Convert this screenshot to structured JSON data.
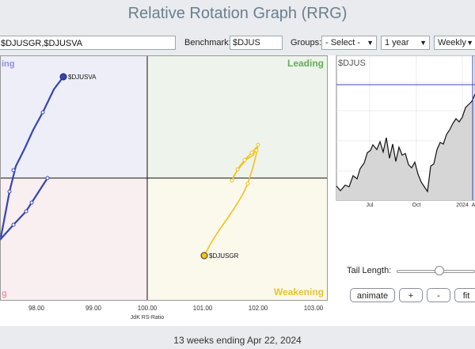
{
  "title": "Relative Rotation Graph (RRG)",
  "toolbar": {
    "symbols_value": "$DJUSGR,$DJUSVA",
    "benchmark_label": "Benchmark:",
    "benchmark_value": "$DJUS",
    "groups_label": "Groups:",
    "groups_value": "- Select -",
    "period_value": "1 year",
    "frequency_value": "Weekly"
  },
  "quadrants": {
    "leading": "Leading",
    "weakening": "Weakening",
    "improving_partial": "ing",
    "lagging_partial": "g"
  },
  "rrg": {
    "x_axis_title": "JdK RS-Ratio",
    "x_ticks": [
      "98.00",
      "99.00",
      "100.00",
      "101.00",
      "102.00",
      "103.00"
    ],
    "series": [
      {
        "name": "$DJUSVA",
        "color": "#3346b5"
      },
      {
        "name": "$DJUSGR",
        "color": "#f2c21a"
      }
    ]
  },
  "mini_chart": {
    "symbol": "$DJUS",
    "x_labels": [
      "Jul",
      "Oct",
      "2024",
      "A"
    ]
  },
  "controls": {
    "tail_length_label": "Tail Length:",
    "tail_value": 13,
    "animate_label": "animate",
    "plus_label": "+",
    "minus_label": "-",
    "fit_label": "fit"
  },
  "footer": "13 weeks ending Apr 22, 2024",
  "colors": {
    "leading_bg": "#eef4ec",
    "improving_bg": "#eeeef9",
    "lagging_bg": "#f9eef0",
    "weakening_bg": "#fbf8ec",
    "leading_text": "#62ad5a",
    "weakening_text": "#e8c330",
    "improving_text": "#8c8fdf",
    "lagging_text": "#e79aa6"
  }
}
